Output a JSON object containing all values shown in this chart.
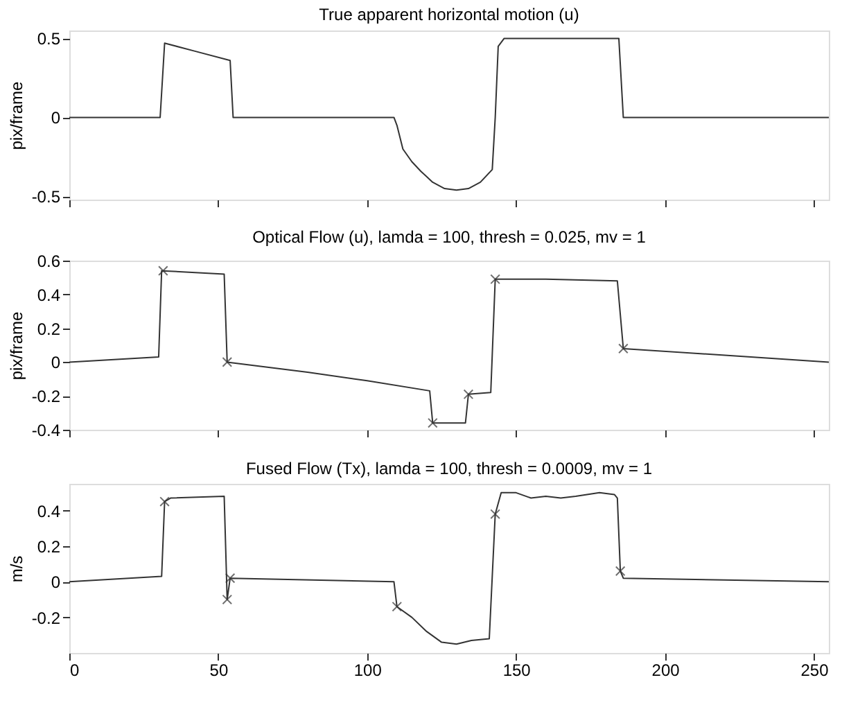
{
  "chart_data": [
    {
      "type": "line",
      "title": "True apparent horizontal motion (u)",
      "ylabel": "pix/frame",
      "xlim": [
        0,
        255
      ],
      "xticks": [
        0,
        50,
        100,
        150,
        200,
        250
      ],
      "ylim": [
        -0.52,
        0.55
      ],
      "yticks": [
        -0.5,
        0,
        0.5
      ],
      "tick_labels": "y",
      "grid": false,
      "series": [
        {
          "color": "#333333",
          "marker": "none",
          "line_style": "solid",
          "x": [
            0,
            30.5,
            32,
            42,
            54,
            55,
            109,
            110,
            112,
            115,
            118,
            122,
            126,
            130,
            134,
            138,
            142,
            143,
            144,
            146,
            184.5,
            186,
            255
          ],
          "values": [
            0,
            0,
            0.47,
            0.42,
            0.36,
            0,
            0,
            -0.05,
            -0.2,
            -0.28,
            -0.34,
            -0.41,
            -0.45,
            -0.46,
            -0.45,
            -0.41,
            -0.33,
            0,
            0.45,
            0.5,
            0.5,
            0,
            0
          ]
        }
      ]
    },
    {
      "type": "line",
      "title": "Optical Flow (u), lamda = 100, thresh = 0.025, mv = 1",
      "ylabel": "pix/frame",
      "xlim": [
        0,
        255
      ],
      "xticks": [
        0,
        50,
        100,
        150,
        200,
        250
      ],
      "ylim": [
        -0.4,
        0.6
      ],
      "yticks": [
        -0.4,
        -0.2,
        0,
        0.2,
        0.4,
        0.6
      ],
      "tick_labels": "y",
      "grid": false,
      "series": [
        {
          "color": "#333333",
          "marker": "none",
          "line_style": "solid",
          "x": [
            0,
            30,
            31,
            52,
            53,
            80,
            100,
            121,
            122,
            133,
            134,
            141.5,
            143,
            160,
            184,
            186,
            255
          ],
          "values": [
            0,
            0.03,
            0.54,
            0.52,
            0,
            -0.06,
            -0.11,
            -0.17,
            -0.36,
            -0.36,
            -0.19,
            -0.18,
            0.49,
            0.49,
            0.48,
            0.08,
            0
          ]
        },
        {
          "type": "scatter",
          "color": "#333333",
          "marker": "cross",
          "x": [
            31.5,
            53,
            122,
            134,
            143,
            186
          ],
          "values": [
            0.54,
            0,
            -0.36,
            -0.19,
            0.49,
            0.08
          ]
        }
      ]
    },
    {
      "type": "line",
      "title": "Fused Flow (Tx), lamda = 100, thresh = 0.0009, mv = 1",
      "ylabel": "m/s",
      "xlim": [
        0,
        255
      ],
      "xticks": [
        0,
        50,
        100,
        150,
        200,
        250
      ],
      "ylim": [
        -0.4,
        0.55
      ],
      "yticks": [
        -0.2,
        0,
        0.2,
        0.4
      ],
      "grid": false,
      "series": [
        {
          "color": "#333333",
          "marker": "none",
          "line_style": "solid",
          "x": [
            0,
            31,
            32,
            34,
            52,
            53,
            54,
            109,
            110,
            115,
            120,
            125,
            130,
            135,
            141,
            143,
            145,
            150,
            155,
            160,
            165,
            170,
            178,
            183,
            184,
            185,
            186,
            255
          ],
          "values": [
            0,
            0.03,
            0.45,
            0.47,
            0.48,
            -0.1,
            0.02,
            0.0,
            -0.14,
            -0.2,
            -0.28,
            -0.34,
            -0.35,
            -0.33,
            -0.32,
            0.38,
            0.5,
            0.5,
            0.47,
            0.48,
            0.47,
            0.48,
            0.5,
            0.49,
            0.47,
            0.06,
            0.02,
            0
          ]
        },
        {
          "type": "scatter",
          "color": "#333333",
          "marker": "cross",
          "x": [
            32,
            53,
            54,
            110,
            143,
            185
          ],
          "values": [
            0.45,
            -0.1,
            0.02,
            -0.14,
            0.38,
            0.06
          ]
        }
      ]
    }
  ]
}
